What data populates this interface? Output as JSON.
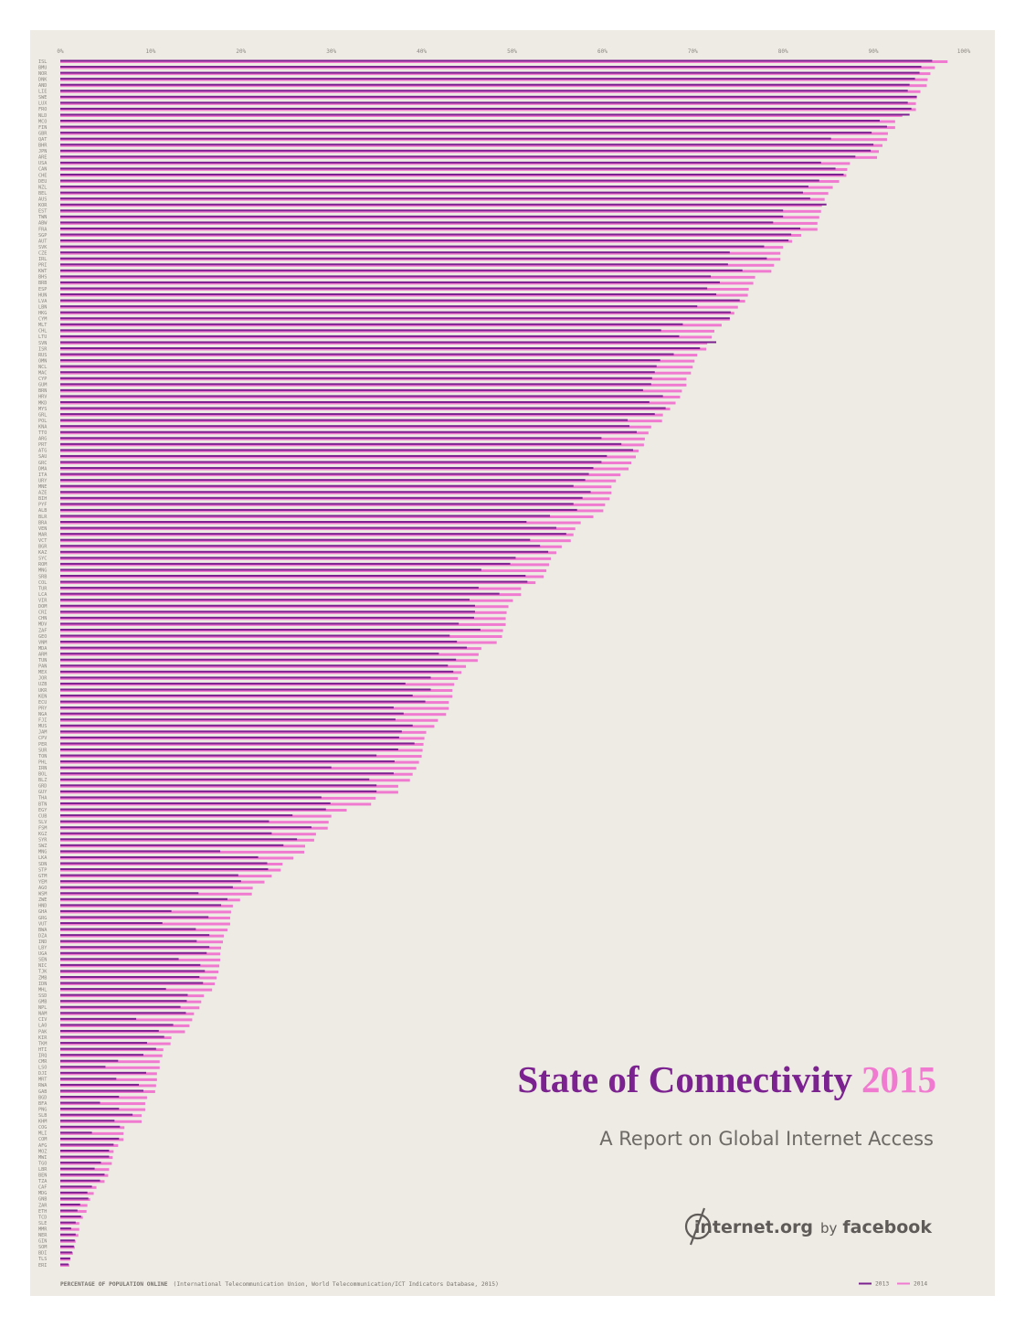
{
  "chart_data": {
    "type": "bar",
    "orientation": "horizontal",
    "title": "State of Connectivity",
    "title_year": "2015",
    "subtitle": "A Report on Global Internet Access",
    "brand": {
      "name": "internet.org",
      "by": "by",
      "partner": "facebook"
    },
    "source_label": "PERCENTAGE OF POPULATION ONLINE",
    "source": "(International Telecommunication Union, World Telecommunication/ICT Indicators Database, 2015)",
    "legend": "bottom-right",
    "xlim": [
      0,
      100
    ],
    "xticks": [
      {
        "value": 0,
        "label": "0%"
      },
      {
        "value": 10,
        "label": "10%"
      },
      {
        "value": 20,
        "label": "20%"
      },
      {
        "value": 30,
        "label": "30%"
      },
      {
        "value": 40,
        "label": "40%"
      },
      {
        "value": 50,
        "label": "50%"
      },
      {
        "value": 60,
        "label": "60%"
      },
      {
        "value": 70,
        "label": "70%"
      },
      {
        "value": 80,
        "label": "80%"
      },
      {
        "value": 90,
        "label": "90%"
      },
      {
        "value": 100,
        "label": "100%"
      }
    ],
    "categories": [
      "ISL",
      "BMU",
      "NOR",
      "DNK",
      "AND",
      "LIE",
      "SWE",
      "LUX",
      "FRO",
      "NLD",
      "MCO",
      "FIN",
      "GBR",
      "QAT",
      "BHR",
      "JPN",
      "ARE",
      "USA",
      "CAN",
      "CHE",
      "DEU",
      "NZL",
      "BEL",
      "AUS",
      "KOR",
      "EST",
      "TWN",
      "ABW",
      "FRA",
      "SGP",
      "AUT",
      "SVK",
      "CZE",
      "IRL",
      "PRI",
      "KWT",
      "BHS",
      "BRB",
      "ESP",
      "HUN",
      "LVA",
      "LBN",
      "HKG",
      "CYM",
      "MLT",
      "CHL",
      "LTU",
      "SVN",
      "ISR",
      "RUS",
      "OMN",
      "NCL",
      "MAC",
      "CYP",
      "GUM",
      "BRN",
      "HRV",
      "MKD",
      "MYS",
      "GRL",
      "POL",
      "KNA",
      "TTO",
      "ARG",
      "PRT",
      "ATG",
      "SAU",
      "GRC",
      "DMA",
      "ITA",
      "URY",
      "MNE",
      "AZE",
      "BIH",
      "PYF",
      "ALB",
      "BLR",
      "BRA",
      "VEN",
      "MAR",
      "VCT",
      "BGR",
      "KAZ",
      "SYC",
      "ROM",
      "MNG",
      "SRB",
      "COL",
      "TUR",
      "LCA",
      "VIR",
      "DOM",
      "CRI",
      "CHN",
      "MDV",
      "ZAF",
      "GEO",
      "VNM",
      "MDA",
      "ARM",
      "TUN",
      "PAN",
      "MEX",
      "JOR",
      "UZB",
      "UKR",
      "KEN",
      "ECU",
      "PRY",
      "NGA",
      "FJI",
      "MUS",
      "JAM",
      "CPV",
      "PER",
      "SUR",
      "TON",
      "PHL",
      "IRN",
      "BOL",
      "BLZ",
      "GRD",
      "GUY",
      "THA",
      "BTN",
      "EGY",
      "CUB",
      "SLV",
      "FSM",
      "KGZ",
      "SYR",
      "SWZ",
      "MNG",
      "LKA",
      "SDN",
      "STP",
      "GTM",
      "YEM",
      "AGO",
      "WSM",
      "ZWE",
      "HND",
      "GHA",
      "GRG",
      "VUT",
      "BWA",
      "DZA",
      "IND",
      "LBY",
      "UGA",
      "SEN",
      "NIC",
      "TJK",
      "ZMB",
      "IDN",
      "MHL",
      "SSD",
      "GMB",
      "NPL",
      "NAM",
      "CIV",
      "LAO",
      "PAK",
      "KIR",
      "TKM",
      "HTI",
      "IRQ",
      "CMR",
      "LSO",
      "DJI",
      "MRT",
      "RWA",
      "GAB",
      "BGD",
      "BFA",
      "PNG",
      "SLB",
      "KHM",
      "COG",
      "MLI",
      "COM",
      "AFG",
      "MOZ",
      "MWI",
      "TGO",
      "LBR",
      "BEN",
      "TZA",
      "CAF",
      "MDG",
      "GNB",
      "ZAR",
      "ETH",
      "TCD",
      "SLE",
      "MMR",
      "NER",
      "GIN",
      "SOM",
      "BDI",
      "TLS",
      "ERI"
    ],
    "series": [
      {
        "name": "2013",
        "color": "#7b2190",
        "values": [
          96.5,
          95.3,
          95.1,
          94.6,
          94,
          93.8,
          94.8,
          93.8,
          94.2,
          94,
          90.7,
          91.5,
          89.8,
          85.3,
          90,
          89.7,
          88,
          84.2,
          85.8,
          86.7,
          84,
          82.8,
          82.2,
          83,
          84.8,
          80,
          80,
          78.9,
          81.9,
          80.9,
          80.6,
          77.9,
          74.1,
          78.2,
          73.9,
          75.5,
          72,
          73,
          71.6,
          72.6,
          75.2,
          70.5,
          74.2,
          74.1,
          68.9,
          66.5,
          68.5,
          72.6,
          70.8,
          67.9,
          66.4,
          66,
          65.8,
          65.5,
          65.4,
          64.5,
          66.7,
          65.2,
          67,
          65.8,
          62.8,
          63,
          63.8,
          59.9,
          62.1,
          63.4,
          60.5,
          59.9,
          59,
          58.5,
          58.1,
          56.8,
          58.7,
          57.8,
          56.8,
          57.2,
          54.2,
          51.6,
          54.9,
          56,
          52,
          53.1,
          54,
          50.4,
          49.8,
          46.6,
          51.5,
          51.7,
          46.3,
          48.6,
          45.3,
          45.9,
          45.9,
          45.8,
          44.1,
          46.5,
          43.1,
          43.9,
          45,
          41.9,
          43.8,
          42.9,
          43.5,
          41,
          38.2,
          41,
          39,
          40.4,
          36.9,
          38,
          37.1,
          39,
          37.8,
          37.5,
          39.2,
          37.4,
          35,
          37,
          30,
          36.9,
          34.2,
          35,
          35,
          28.9,
          29.9,
          29.4,
          25.7,
          23.1,
          27.8,
          23.4,
          26.2,
          24.7,
          17.7,
          21.9,
          22.9,
          23,
          19.7,
          20,
          19.1,
          15.3,
          18.5,
          17.8,
          12.3,
          16.4,
          11.3,
          15,
          16.5,
          15.1,
          16.5,
          16.2,
          13.1,
          15.5,
          16,
          15.4,
          15.8,
          11.7,
          14.1,
          14,
          13.3,
          13.9,
          8.4,
          12.5,
          10.9,
          11.5,
          9.6,
          10.6,
          9.2,
          6.4,
          5,
          9.5,
          6.2,
          8.7,
          9.2,
          6.5,
          4.4,
          6.5,
          8,
          6,
          6.6,
          3.5,
          6.5,
          5.9,
          5.4,
          5.4,
          4.5,
          3.8,
          4.9,
          4.4,
          3.5,
          3,
          3.1,
          2.2,
          1.9,
          2.3,
          1.7,
          1.2,
          1.7,
          1.6,
          1.5,
          1.3,
          1.1,
          0.9
        ]
      },
      {
        "name": "2014",
        "color": "#f07ad0",
        "values": [
          98.2,
          96.8,
          96.3,
          96,
          95.9,
          95.2,
          94.8,
          94.7,
          94.7,
          93.2,
          92.4,
          92.4,
          91.6,
          91.5,
          91,
          90.6,
          90.4,
          87.4,
          87.1,
          87,
          86.2,
          85.5,
          85,
          84.6,
          84.3,
          84.2,
          84,
          83.8,
          83.8,
          82,
          81,
          80,
          79.7,
          79.7,
          79,
          78.7,
          76.9,
          76.7,
          76.2,
          76.1,
          75.8,
          75,
          74.6,
          74.1,
          73.2,
          72.4,
          72.1,
          71.6,
          71.5,
          70.5,
          70.2,
          70,
          69.8,
          69.3,
          69.3,
          68.8,
          68.6,
          68.1,
          67.5,
          66.7,
          66.6,
          65.4,
          65.1,
          64.7,
          64.6,
          64,
          63.7,
          63.2,
          62.9,
          62,
          61.5,
          61,
          61,
          60.8,
          60.3,
          60.1,
          59,
          57.6,
          57,
          56.8,
          56.5,
          55.5,
          54.9,
          54.3,
          54.1,
          53.8,
          53.5,
          52.6,
          51,
          51,
          50.1,
          49.6,
          49.4,
          49.3,
          49.3,
          49,
          48.9,
          48.3,
          46.6,
          46.3,
          46.2,
          44.9,
          44.4,
          44,
          43.6,
          43.4,
          43.4,
          43,
          43,
          42.7,
          41.8,
          41.4,
          40.5,
          40.3,
          40.2,
          40.1,
          40,
          39.7,
          39.4,
          39,
          38.7,
          37.4,
          37.4,
          34.9,
          34.4,
          31.7,
          30,
          29.7,
          29.6,
          28.3,
          28.1,
          27.1,
          27,
          25.8,
          24.6,
          24.4,
          23.4,
          22.6,
          21.3,
          21.2,
          19.9,
          19.1,
          18.9,
          18.8,
          18.8,
          18.5,
          18.1,
          18,
          17.8,
          17.7,
          17.7,
          17.6,
          17.5,
          17.3,
          17.1,
          16.8,
          15.9,
          15.6,
          15.4,
          14.8,
          14.6,
          14.3,
          13.8,
          12.3,
          12.2,
          11.4,
          11.3,
          11,
          11,
          10.7,
          10.7,
          10.6,
          10.5,
          9.6,
          9.4,
          9.4,
          9,
          9,
          7.1,
          7,
          7,
          6.4,
          5.9,
          5.8,
          5.7,
          5.4,
          5.3,
          4.9,
          4,
          3.7,
          3.3,
          3,
          2.9,
          2.5,
          2.1,
          2.1,
          2,
          1.7,
          1.6,
          1.4,
          1.1,
          1
        ]
      }
    ]
  }
}
